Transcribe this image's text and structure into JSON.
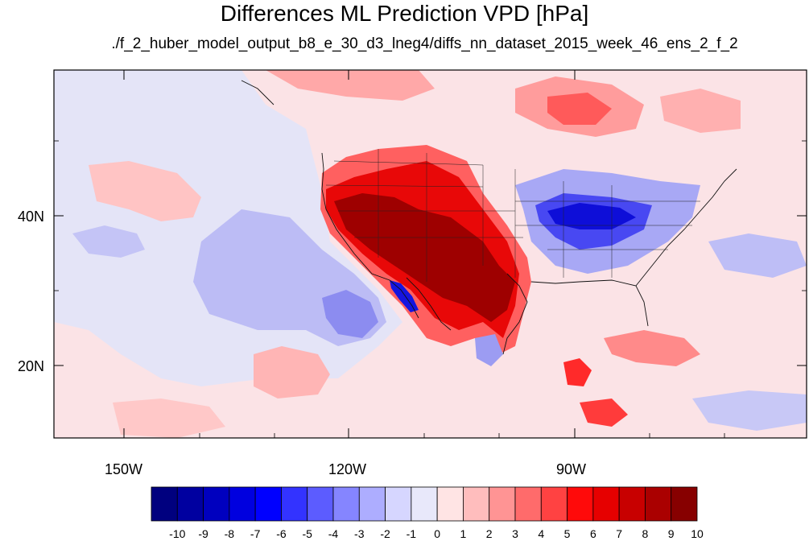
{
  "title": "Differences ML Prediction VPD [hPa]",
  "subtitle": "./f_2_huber_model_output_b8_e_30_d3_lneg4/diffs_nn_dataset_2015_week_46_ens_2_f_2",
  "map": {
    "lat_labels": [
      "40N",
      "20N"
    ],
    "lon_labels": [
      "150W",
      "120W",
      "90W"
    ],
    "extent": {
      "lon": [
        -160,
        -60
      ],
      "lat": [
        10,
        59
      ]
    },
    "ocean_color": "#E8E8F8"
  },
  "colorbar": {
    "labels": [
      "-10",
      "-9",
      "-8",
      "-7",
      "-6",
      "-5",
      "-4",
      "-3",
      "-2",
      "-1",
      "0",
      "1",
      "2",
      "3",
      "4",
      "5",
      "6",
      "7",
      "8",
      "9",
      "10"
    ],
    "colors": [
      "#00007F",
      "#0000A0",
      "#0000BF",
      "#0000DF",
      "#0000FF",
      "#3333FF",
      "#5C5CFF",
      "#8585FF",
      "#ADADFF",
      "#D6D6FF",
      "#E8E8FA",
      "#FFE4E4",
      "#FFBDBD",
      "#FF9494",
      "#FF6B6B",
      "#FF4242",
      "#FF0A0A",
      "#E60000",
      "#C80000",
      "#AA0000",
      "#870000"
    ]
  }
}
